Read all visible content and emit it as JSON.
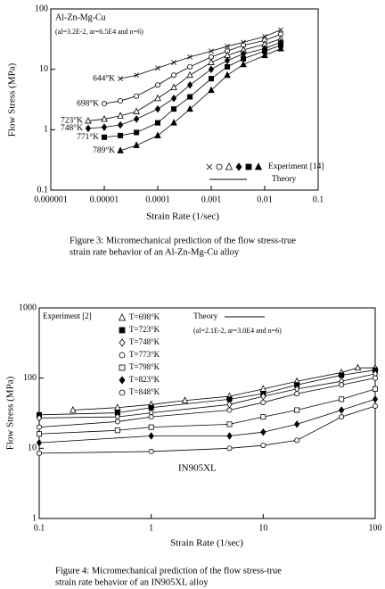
{
  "chart_data": [
    {
      "type": "scatter",
      "xscale": "log",
      "yscale": "log",
      "xlabel": "Strain Rate (1/sec)",
      "ylabel": "Flow Stress (MPa)",
      "xlim": [
        1e-06,
        0.1
      ],
      "ylim": [
        0.1,
        100
      ],
      "xticks": [
        1e-06,
        1e-05,
        0.0001,
        0.001,
        0.01,
        0.1
      ],
      "yticks": [
        0.1,
        1,
        10,
        100
      ],
      "annotations": [
        "Al-Zn-Mg-Cu",
        "(al=3.2E-2, ar=6.5E4 and n=6)"
      ],
      "experiment_label": "Experiment [14]",
      "theory_label": "Theory",
      "caption": [
        "Figure 3: Micromechanical prediction of the flow stress-true",
        "strain rate behavior of an Al-Zn-Mg-Cu alloy"
      ],
      "series": [
        {
          "name": "644°K",
          "marker": "x",
          "filled": false,
          "color": "#000000",
          "x": [
            2e-05,
            4e-05,
            0.0001,
            0.0002,
            0.0004,
            0.001,
            0.002,
            0.004,
            0.01,
            0.02
          ],
          "values": [
            7,
            8,
            10.5,
            13,
            16,
            20,
            24,
            28,
            35,
            45
          ]
        },
        {
          "name": "698°K",
          "marker": "circle",
          "filled": false,
          "color": "#000000",
          "x": [
            1e-05,
            2e-05,
            4e-05,
            0.0001,
            0.0002,
            0.0004,
            0.001,
            0.002,
            0.004,
            0.01,
            0.02
          ],
          "values": [
            2.7,
            3,
            3.6,
            5.5,
            8,
            11,
            16,
            20,
            25,
            30,
            38
          ]
        },
        {
          "name": "723°K",
          "marker": "triangle",
          "filled": false,
          "color": "#000000",
          "x": [
            5e-06,
            1e-05,
            2e-05,
            4e-05,
            0.0001,
            0.0002,
            0.0004,
            0.001,
            0.002,
            0.004,
            0.01,
            0.02
          ],
          "values": [
            1.4,
            1.5,
            1.7,
            2,
            3.3,
            5,
            8,
            13,
            17,
            21,
            26,
            32
          ]
        },
        {
          "name": "748°K",
          "marker": "diamond",
          "filled": true,
          "color": "#000000",
          "x": [
            5e-06,
            1e-05,
            2e-05,
            4e-05,
            0.0001,
            0.0002,
            0.0004,
            0.001,
            0.002,
            0.004,
            0.01,
            0.02
          ],
          "values": [
            1.05,
            1.1,
            1.2,
            1.5,
            2.2,
            3.3,
            5.5,
            10,
            14,
            18,
            22,
            28
          ]
        },
        {
          "name": "771°K",
          "marker": "square",
          "filled": true,
          "color": "#000000",
          "x": [
            1e-05,
            2e-05,
            4e-05,
            0.0001,
            0.0002,
            0.0004,
            0.001,
            0.002,
            0.004,
            0.01,
            0.02
          ],
          "values": [
            0.75,
            0.8,
            0.9,
            1.3,
            2.2,
            3.5,
            7,
            11,
            15,
            20,
            25
          ]
        },
        {
          "name": "789°K",
          "marker": "triangle",
          "filled": true,
          "color": "#000000",
          "x": [
            2e-05,
            4e-05,
            0.0001,
            0.0002,
            0.0004,
            0.001,
            0.002,
            0.004,
            0.01,
            0.02
          ],
          "values": [
            0.45,
            0.55,
            0.8,
            1.3,
            2.2,
            4.5,
            8,
            12,
            17,
            22
          ]
        }
      ]
    },
    {
      "type": "scatter",
      "xscale": "log",
      "yscale": "log",
      "xlabel": "Strain Rate (1/sec)",
      "ylabel": "Flow Stress (MPa)",
      "xlim": [
        0.1,
        100
      ],
      "ylim": [
        1,
        1000
      ],
      "xticks": [
        0.1,
        1,
        10,
        100
      ],
      "yticks": [
        1,
        10,
        100,
        1000
      ],
      "annotations": [
        "(al=2.1E-2, ar=3.0E4 and n=6)",
        "IN905XL"
      ],
      "experiment_label": "Experiment [2]",
      "theory_label": "Theory",
      "caption": [
        "Figure 4: Micromechanical prediction of the flow stress-true",
        "strain rate behavior of an IN905XL alloy"
      ],
      "series": [
        {
          "name": "T=698°K",
          "marker": "triangle",
          "filled": false,
          "color": "#000000",
          "x": [
            0.2,
            0.5,
            1,
            2,
            5,
            10,
            20,
            50,
            70,
            100
          ],
          "values": [
            35,
            38,
            42,
            48,
            55,
            70,
            90,
            120,
            140,
            140
          ]
        },
        {
          "name": "T=723°K",
          "marker": "square",
          "filled": true,
          "color": "#000000",
          "x": [
            0.1,
            0.5,
            1,
            5,
            10,
            20,
            50,
            100
          ],
          "values": [
            30,
            32,
            38,
            50,
            60,
            80,
            110,
            130
          ]
        },
        {
          "name": "T=748°K",
          "marker": "diamond",
          "filled": false,
          "color": "#000000",
          "x": [
            0.1,
            0.5,
            1,
            5,
            10,
            20,
            50,
            100
          ],
          "values": [
            27,
            28,
            32,
            42,
            55,
            70,
            90,
            115
          ]
        },
        {
          "name": "T=773°K",
          "marker": "circle",
          "filled": false,
          "color": "#000000",
          "x": [
            0.1,
            0.5,
            1,
            5,
            10,
            20,
            50,
            100
          ],
          "values": [
            20,
            24,
            28,
            35,
            45,
            60,
            80,
            100
          ]
        },
        {
          "name": "T=798°K",
          "marker": "square",
          "filled": false,
          "color": "#000000",
          "x": [
            0.1,
            0.5,
            1,
            5,
            10,
            20,
            50,
            100
          ],
          "values": [
            16,
            18,
            20,
            22,
            28,
            35,
            50,
            70
          ]
        },
        {
          "name": "T=823°K",
          "marker": "diamond",
          "filled": true,
          "color": "#000000",
          "x": [
            0.1,
            1,
            5,
            10,
            20,
            50,
            100
          ],
          "values": [
            12,
            15,
            15,
            17,
            22,
            35,
            50
          ]
        },
        {
          "name": "T=848°K",
          "marker": "circle",
          "filled": false,
          "color": "#000000",
          "x": [
            0.1,
            1,
            5,
            10,
            20,
            50,
            100
          ],
          "values": [
            8.5,
            9,
            10,
            11,
            13,
            28,
            40
          ]
        }
      ]
    }
  ]
}
